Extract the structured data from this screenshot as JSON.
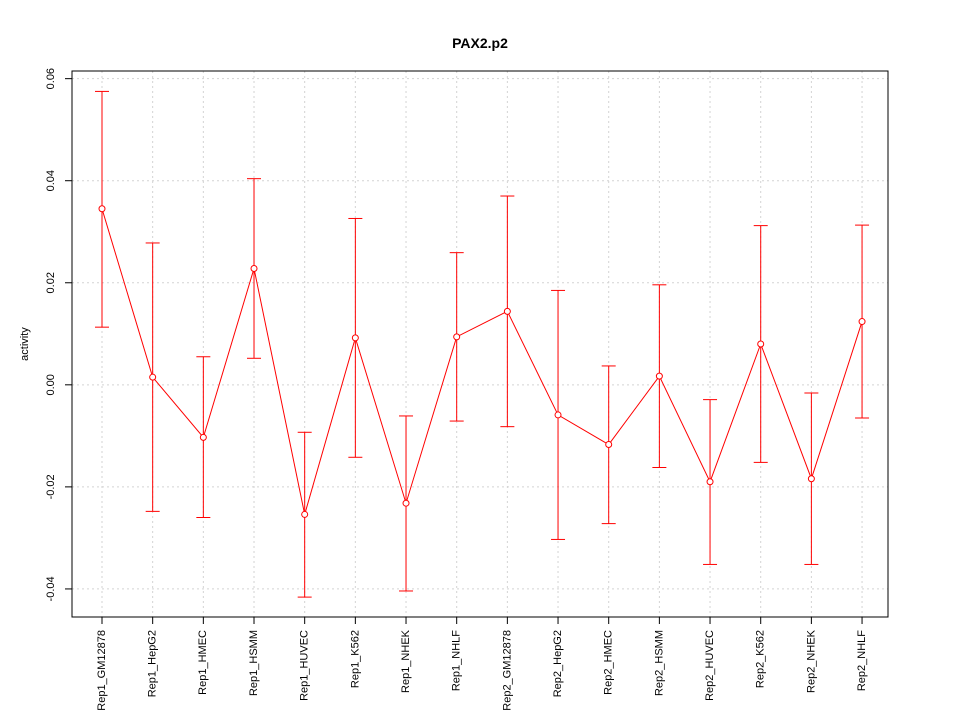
{
  "chart_data": {
    "type": "line",
    "title": "PAX2.p2",
    "xlabel": "",
    "ylabel": "activity",
    "ylim": [
      -0.0455,
      0.0615
    ],
    "yticks": [
      -0.04,
      -0.02,
      0.0,
      0.02,
      0.04,
      0.06
    ],
    "ytick_labels": [
      "-0.04",
      "-0.02",
      "0.00",
      "0.02",
      "0.04",
      "0.06"
    ],
    "grid": true,
    "categories": [
      "Rep1_GM12878",
      "Rep1_HepG2",
      "Rep1_HMEC",
      "Rep1_HSMM",
      "Rep1_HUVEC",
      "Rep1_K562",
      "Rep1_NHEK",
      "Rep1_NHLF",
      "Rep2_GM12878",
      "Rep2_HepG2",
      "Rep2_HMEC",
      "Rep2_HSMM",
      "Rep2_HUVEC",
      "Rep2_K562",
      "Rep2_NHEK",
      "Rep2_NHLF"
    ],
    "series": [
      {
        "name": "activity",
        "color": "#ff0000",
        "values": [
          0.0345,
          0.0015,
          -0.0103,
          0.0228,
          -0.0254,
          0.0092,
          -0.0232,
          0.0094,
          0.0144,
          -0.0059,
          -0.0117,
          0.0017,
          -0.019,
          0.008,
          -0.0184,
          0.0124
        ],
        "upper": [
          0.0575,
          0.0278,
          0.0055,
          0.0404,
          -0.0093,
          0.0326,
          -0.0061,
          0.0259,
          0.037,
          0.0185,
          0.0037,
          0.0196,
          -0.0029,
          0.0312,
          -0.0016,
          0.0313
        ],
        "lower": [
          0.0113,
          -0.0248,
          -0.026,
          0.0052,
          -0.0416,
          -0.0142,
          -0.0404,
          -0.0071,
          -0.0082,
          -0.0303,
          -0.0272,
          -0.0162,
          -0.0352,
          -0.0152,
          -0.0352,
          -0.0065
        ]
      }
    ]
  }
}
